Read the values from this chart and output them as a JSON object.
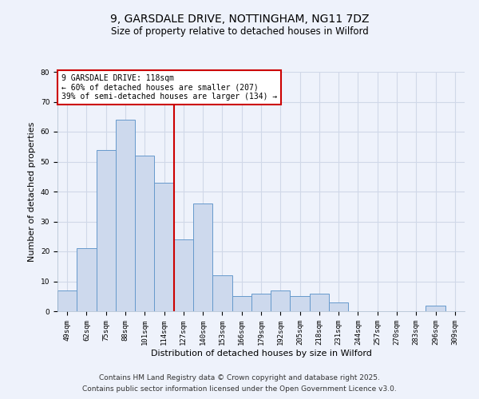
{
  "title": "9, GARSDALE DRIVE, NOTTINGHAM, NG11 7DZ",
  "subtitle": "Size of property relative to detached houses in Wilford",
  "xlabel": "Distribution of detached houses by size in Wilford",
  "ylabel": "Number of detached properties",
  "categories": [
    "49sqm",
    "62sqm",
    "75sqm",
    "88sqm",
    "101sqm",
    "114sqm",
    "127sqm",
    "140sqm",
    "153sqm",
    "166sqm",
    "179sqm",
    "192sqm",
    "205sqm",
    "218sqm",
    "231sqm",
    "244sqm",
    "257sqm",
    "270sqm",
    "283sqm",
    "296sqm",
    "309sqm"
  ],
  "values": [
    7,
    21,
    54,
    64,
    52,
    43,
    24,
    36,
    12,
    5,
    6,
    7,
    5,
    6,
    3,
    0,
    0,
    0,
    0,
    2,
    0
  ],
  "bar_color": "#cdd9ed",
  "bar_edge_color": "#6699cc",
  "vline_color": "#cc0000",
  "vline_x": 5.5,
  "ylim": [
    0,
    80
  ],
  "yticks": [
    0,
    10,
    20,
    30,
    40,
    50,
    60,
    70,
    80
  ],
  "annotation_title": "9 GARSDALE DRIVE: 118sqm",
  "annotation_line1": "← 60% of detached houses are smaller (207)",
  "annotation_line2": "39% of semi-detached houses are larger (134) →",
  "annotation_box_color": "#ffffff",
  "annotation_border_color": "#cc0000",
  "background_color": "#eef2fb",
  "grid_color": "#d0d8e8",
  "footer_line1": "Contains HM Land Registry data © Crown copyright and database right 2025.",
  "footer_line2": "Contains public sector information licensed under the Open Government Licence v3.0.",
  "title_fontsize": 10,
  "subtitle_fontsize": 8.5,
  "tick_fontsize": 6.5,
  "label_fontsize": 8,
  "annotation_fontsize": 7,
  "footer_fontsize": 6.5
}
